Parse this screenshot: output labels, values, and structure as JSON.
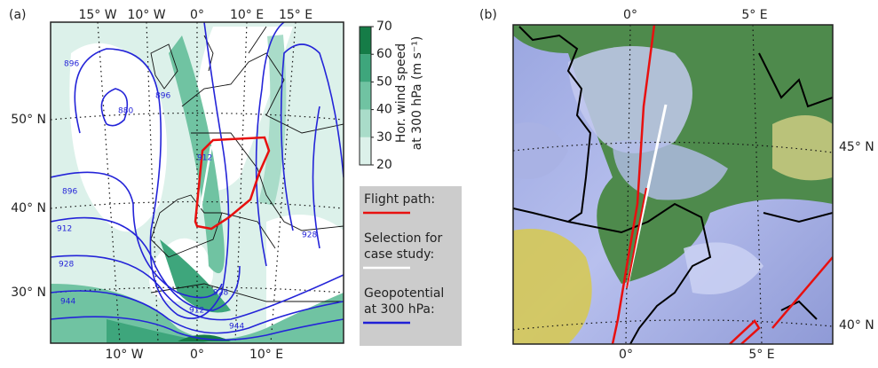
{
  "panel_a": {
    "label": "(a)",
    "top_labels": [
      "15° W",
      "10° W",
      "0°",
      "10° E",
      "15° E"
    ],
    "left_labels": [
      "50° N",
      "40° N",
      "30° N"
    ],
    "bottom_labels": [
      "10° W",
      "0°",
      "10° E"
    ],
    "contour_labels": [
      "896",
      "880",
      "896",
      "912",
      "896",
      "912",
      "928",
      "944",
      "928",
      "912",
      "944",
      "928"
    ]
  },
  "colorbar": {
    "label_lines": [
      "Hor. wind speed",
      "at 300 hPa (m s⁻¹)"
    ],
    "ticks": [
      20,
      30,
      40,
      50,
      60,
      70
    ],
    "colors": [
      "#dcf1ea",
      "#a9dcc9",
      "#70c3a2",
      "#3ea67c",
      "#157c47"
    ]
  },
  "legend": {
    "items": [
      {
        "lines": [
          "Flight path:"
        ],
        "color": "#e8100f"
      },
      {
        "lines": [
          "Selection for",
          "case study:"
        ],
        "color": "#ffffff"
      },
      {
        "lines": [
          "Geopotential",
          "at 300 hPa:"
        ],
        "color": "#1f1fd6"
      }
    ]
  },
  "panel_b": {
    "label": "(b)",
    "top_labels": [
      "0°",
      "5° E"
    ],
    "right_labels": [
      "45° N",
      "40° N"
    ],
    "bottom_labels": [
      "0°",
      "5° E"
    ]
  }
}
